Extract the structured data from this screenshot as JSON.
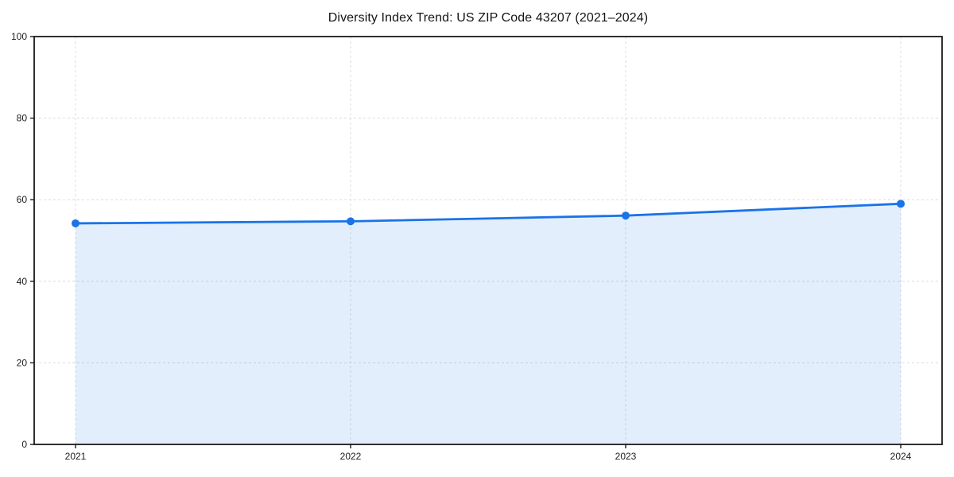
{
  "chart_data": {
    "type": "line",
    "title": "Diversity Index Trend: US ZIP Code 43207 (2021–2024)",
    "x": [
      "2021",
      "2022",
      "2023",
      "2024"
    ],
    "values": [
      54.2,
      54.7,
      56.1,
      59.0
    ],
    "series_name": "Diversity Index",
    "xlabel": "",
    "ylabel": "",
    "ylim": [
      0,
      100
    ],
    "yticks": [
      0,
      20,
      40,
      60,
      80,
      100
    ],
    "area_fill": true,
    "markers": true,
    "legend": "none",
    "grid": {
      "show": true,
      "style": "dashed",
      "axes": "both"
    },
    "colors": {
      "line": "#1a73e8",
      "fill": "rgba(26,115,232,0.12)",
      "grid": "#dcdcdc",
      "frame": "#1a1a1a",
      "tick": "#1a1a1a",
      "text": "#1c1c1c",
      "background": "#ffffff"
    }
  }
}
